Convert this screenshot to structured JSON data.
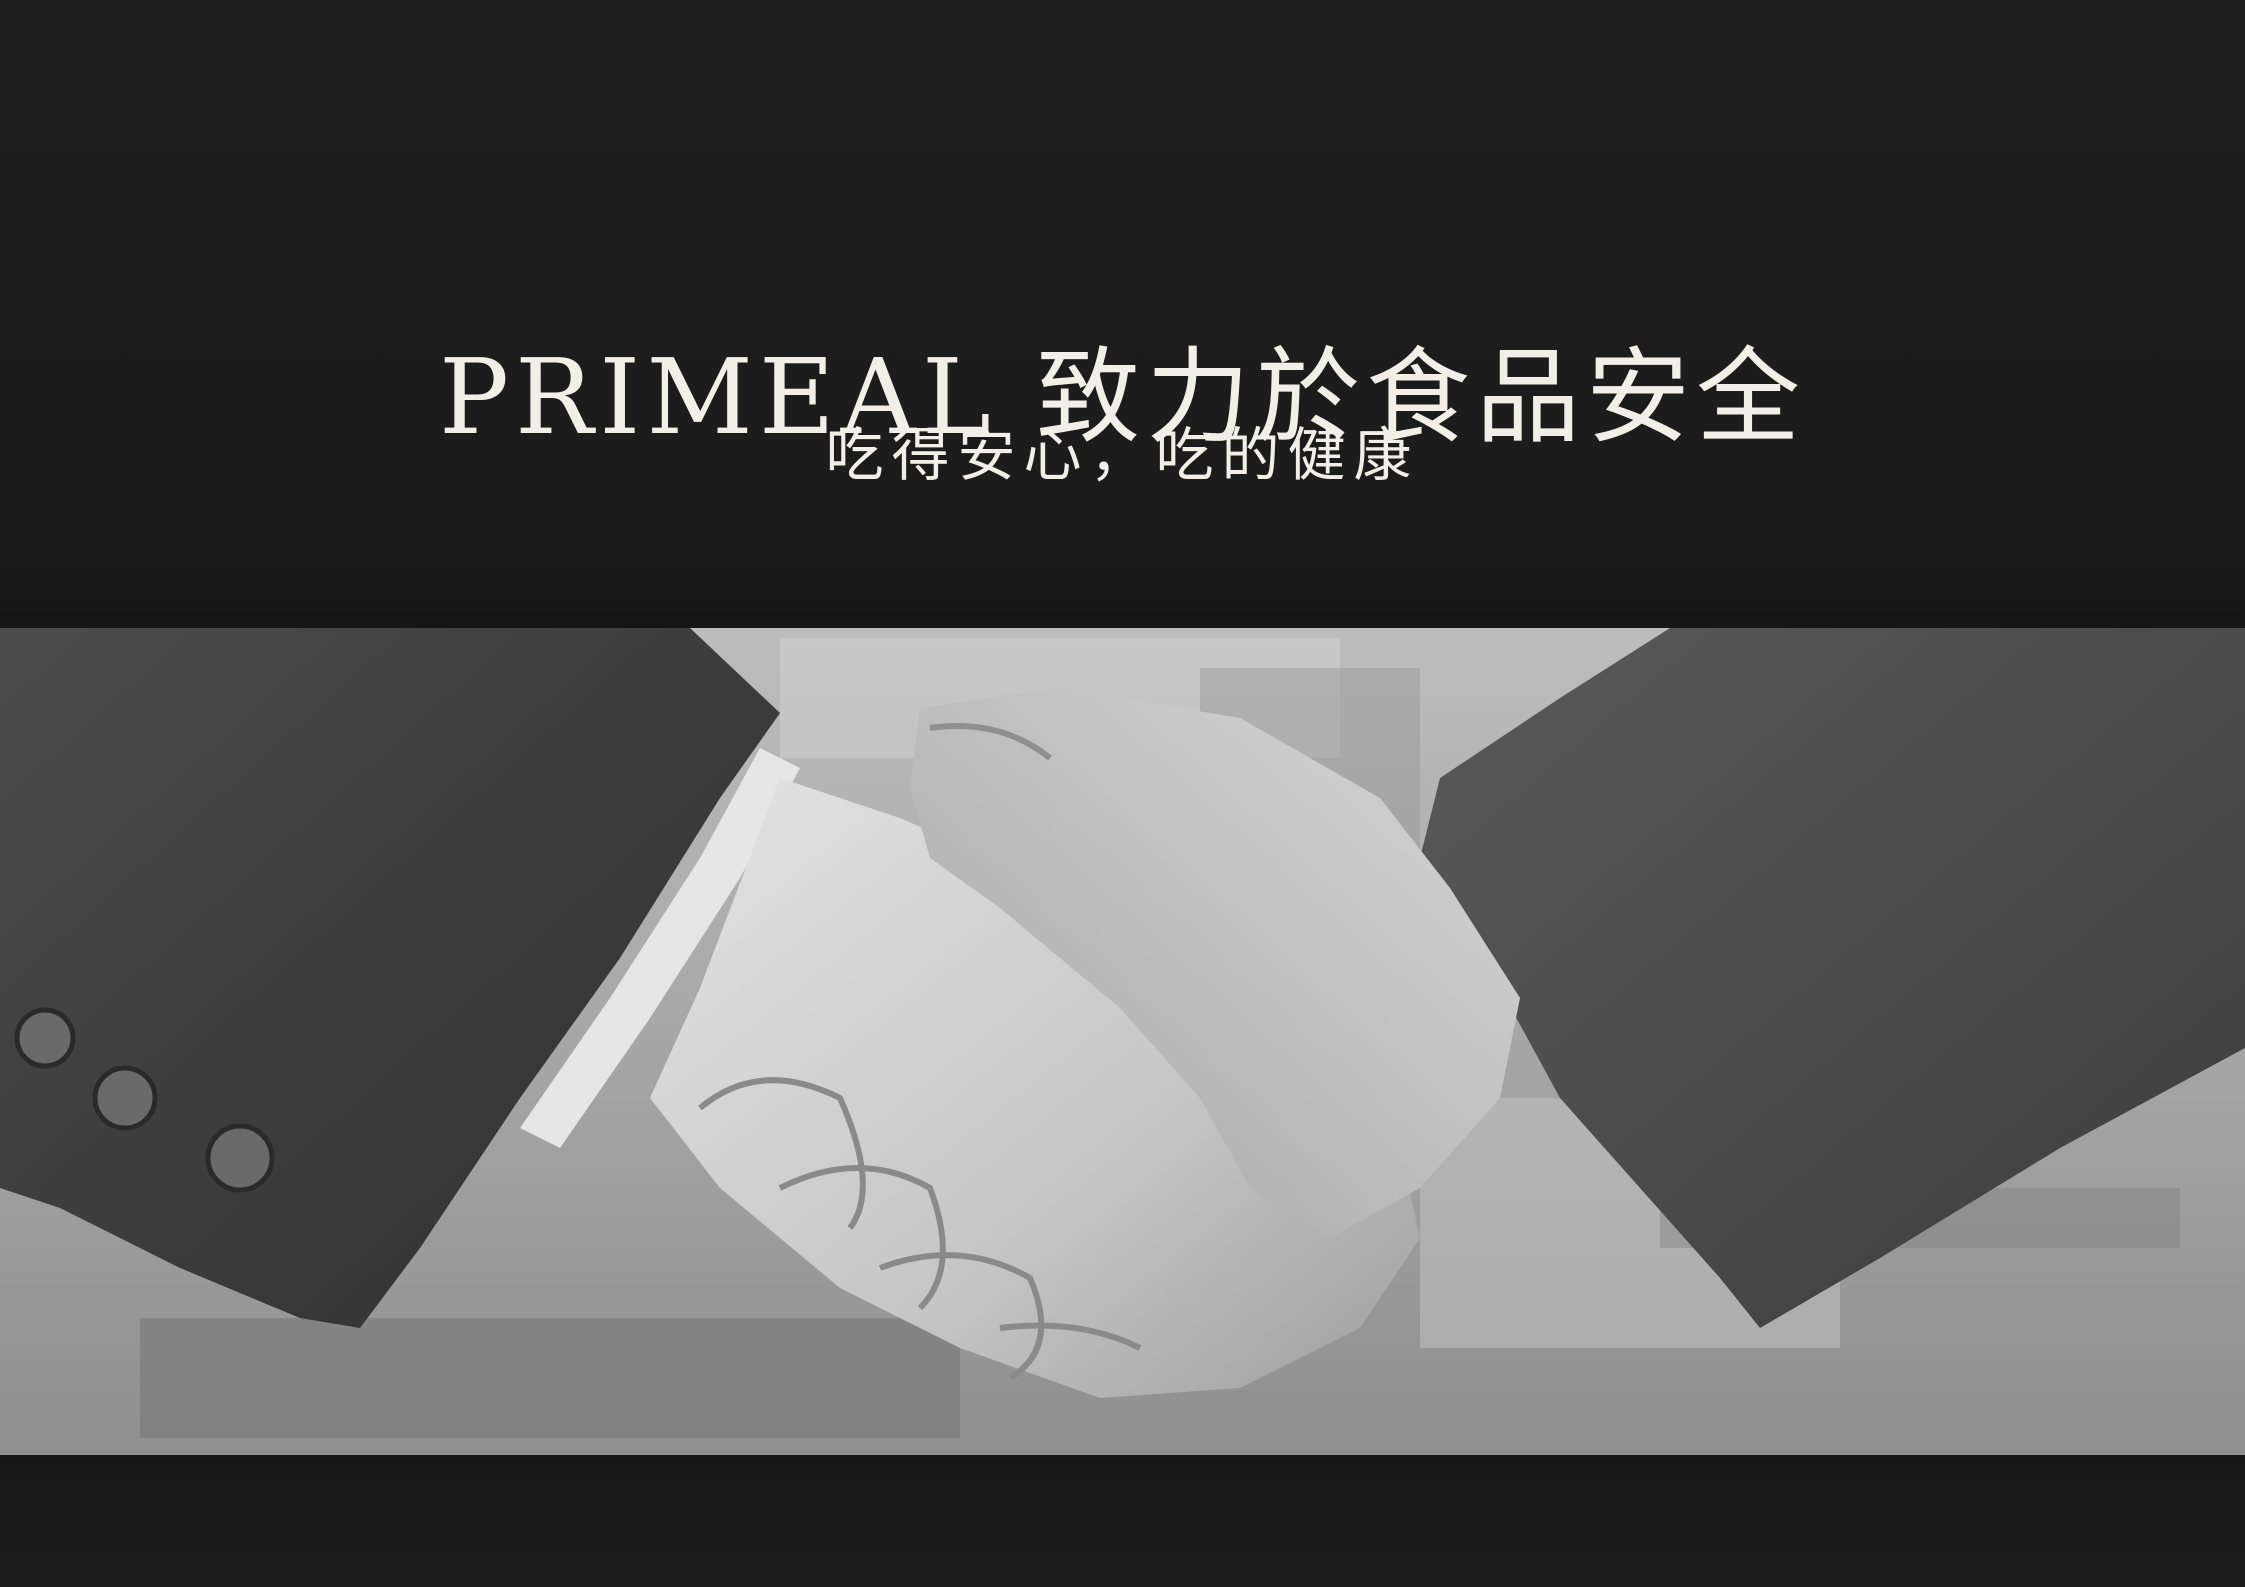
{
  "hero": {
    "title": "PRIMEAL 致力於食品安全",
    "subtitle": "吃得安心，吃的健康"
  },
  "photo": {
    "subject": "handshake-photo",
    "style": "black-and-white"
  },
  "colors": {
    "background": "#1d1d1d",
    "text": "#f2efe9"
  }
}
